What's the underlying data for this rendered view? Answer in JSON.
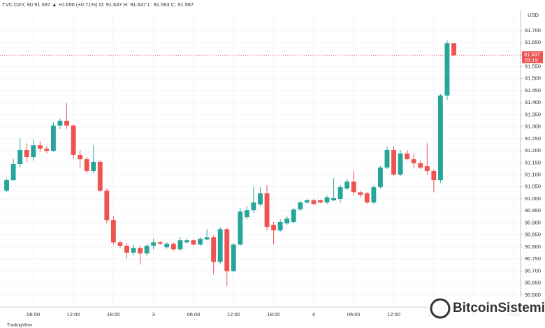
{
  "chart_data": {
    "type": "candlestick",
    "title": "TVC:DXY, 60  91.597 ▲ +0.650 (+0.71%) O: 91.647 H: 91.647 L: 91.593 C: 91.597",
    "currency": "USD",
    "countdown": "53:19",
    "last_price": 91.597,
    "branding": "TradingView",
    "watermark": "BitcoinSistemi",
    "up_color": "#26a69a",
    "down_color": "#ef5350",
    "grid": true,
    "categories": [
      null,
      null,
      null,
      null,
      "06:00",
      null,
      null,
      null,
      null,
      null,
      "12:00",
      null,
      null,
      null,
      null,
      null,
      "18:00",
      null,
      null,
      null,
      null,
      null,
      "3",
      null,
      null,
      null,
      null,
      null,
      "06:00",
      null,
      null,
      null,
      null,
      null,
      "12:00",
      null,
      null,
      null,
      null,
      null,
      "18:00",
      null,
      null,
      null,
      null,
      null,
      "4",
      null,
      null,
      null,
      null,
      null,
      "06:00",
      null,
      null,
      null,
      null,
      null,
      "12:00",
      null,
      null,
      null,
      null,
      null,
      "18:00",
      null,
      null,
      null,
      null,
      null,
      "5",
      null,
      null,
      null,
      null,
      null,
      "06:00"
    ],
    "open": [
      91.034,
      91.078,
      91.145,
      91.203,
      91.174,
      91.223,
      91.209,
      91.2,
      91.305,
      91.325,
      91.305,
      91.183,
      91.165,
      91.116,
      91.154,
      91.034,
      90.912,
      90.819,
      90.805,
      90.776,
      90.796,
      90.773,
      90.805,
      90.819,
      90.799,
      90.813,
      90.79,
      90.819,
      90.828,
      90.81,
      90.831,
      90.84,
      90.738,
      90.874,
      90.7,
      90.81,
      90.924,
      90.953,
      90.977,
      91.023,
      90.892,
      90.869,
      90.898,
      90.904,
      90.956,
      90.985,
      90.994,
      90.994,
      90.985,
      90.994,
      91.0,
      91.043,
      91.072,
      91.028,
      91.023,
      90.985,
      91.049,
      91.13,
      91.203,
      91.101,
      91.189,
      91.165,
      91.148,
      91.136,
      91.116,
      91.078,
      91.43,
      91.647,
      null,
      null,
      null,
      null,
      null,
      null,
      null,
      null,
      null
    ],
    "high": [
      91.087,
      91.165,
      91.252,
      91.232,
      91.247,
      91.24,
      91.22,
      91.319,
      91.334,
      91.398,
      91.31,
      91.203,
      91.174,
      91.223,
      91.16,
      91.043,
      90.927,
      90.825,
      90.816,
      90.81,
      90.805,
      90.81,
      90.834,
      90.825,
      90.819,
      90.819,
      90.84,
      90.834,
      90.834,
      90.84,
      90.874,
      90.848,
      90.883,
      90.88,
      90.816,
      90.962,
      90.97,
      91.049,
      91.049,
      91.058,
      90.904,
      90.915,
      90.93,
      90.962,
      90.991,
      91.0,
      91.0,
      90.997,
      91.014,
      91.087,
      91.058,
      91.084,
      91.116,
      91.034,
      91.028,
      91.058,
      91.136,
      91.218,
      91.218,
      91.203,
      91.203,
      91.189,
      91.16,
      91.232,
      91.124,
      91.436,
      91.659,
      91.647,
      null,
      null,
      null,
      null,
      null,
      null,
      null,
      null,
      null
    ],
    "low": [
      91.028,
      91.075,
      91.13,
      91.154,
      91.159,
      91.195,
      91.19,
      91.195,
      91.29,
      91.29,
      91.165,
      91.13,
      91.107,
      91.107,
      91.028,
      90.898,
      90.81,
      90.795,
      90.752,
      90.764,
      90.729,
      90.764,
      90.79,
      90.81,
      90.793,
      90.784,
      90.784,
      90.813,
      90.805,
      90.805,
      90.828,
      90.686,
      90.729,
      90.637,
      90.694,
      90.805,
      90.915,
      90.941,
      90.97,
      90.869,
      90.81,
      90.863,
      90.892,
      90.898,
      90.95,
      90.979,
      90.973,
      90.982,
      90.979,
      90.991,
      90.985,
      91.037,
      91.014,
      91.006,
      90.979,
      90.979,
      91.043,
      91.124,
      91.095,
      91.095,
      91.16,
      91.13,
      91.124,
      91.101,
      91.028,
      91.066,
      91.412,
      91.593,
      null,
      null,
      null,
      null,
      null,
      null,
      null,
      null,
      null
    ],
    "close": [
      91.078,
      91.145,
      91.203,
      91.174,
      91.223,
      91.209,
      91.2,
      91.305,
      91.325,
      91.305,
      91.183,
      91.165,
      91.116,
      91.154,
      91.034,
      90.912,
      90.819,
      90.805,
      90.776,
      90.796,
      90.773,
      90.805,
      90.819,
      90.813,
      90.813,
      90.79,
      90.828,
      90.828,
      90.81,
      90.834,
      90.84,
      90.738,
      90.874,
      90.7,
      90.81,
      90.947,
      90.953,
      90.985,
      91.023,
      90.883,
      90.869,
      90.904,
      90.918,
      90.956,
      90.985,
      90.994,
      90.979,
      90.985,
      91.006,
      91.003,
      91.049,
      91.072,
      91.028,
      91.017,
      90.985,
      91.049,
      91.13,
      91.203,
      91.101,
      91.189,
      91.165,
      91.148,
      91.13,
      91.116,
      91.078,
      91.43,
      91.647,
      91.597,
      null,
      null,
      null,
      null,
      null,
      null,
      null,
      null,
      null
    ],
    "ylim": [
      90.55,
      91.775
    ],
    "yticks": [
      {
        "value": 90.6,
        "label": "90.600"
      },
      {
        "value": 90.65,
        "label": "90.650"
      },
      {
        "value": 90.7,
        "label": "90.700"
      },
      {
        "value": 90.75,
        "label": "90.750"
      },
      {
        "value": 90.8,
        "label": "90.800"
      },
      {
        "value": 90.85,
        "label": "90.850"
      },
      {
        "value": 90.9,
        "label": "90.900"
      },
      {
        "value": 90.95,
        "label": "90.950"
      },
      {
        "value": 91.0,
        "label": "91.000"
      },
      {
        "value": 91.05,
        "label": "91.050"
      },
      {
        "value": 91.1,
        "label": "91.100"
      },
      {
        "value": 91.15,
        "label": "91.150"
      },
      {
        "value": 91.2,
        "label": "91.200"
      },
      {
        "value": 91.25,
        "label": "91.250"
      },
      {
        "value": 91.3,
        "label": "91.300"
      },
      {
        "value": 91.35,
        "label": "91.350"
      },
      {
        "value": 91.4,
        "label": "91.400"
      },
      {
        "value": 91.45,
        "label": "91.450"
      },
      {
        "value": 91.5,
        "label": "91.500"
      },
      {
        "value": 91.55,
        "label": "91.550"
      },
      {
        "value": 91.6,
        "label": "91.600"
      },
      {
        "value": 91.65,
        "label": "91.650"
      },
      {
        "value": 91.7,
        "label": "91.700"
      }
    ]
  }
}
